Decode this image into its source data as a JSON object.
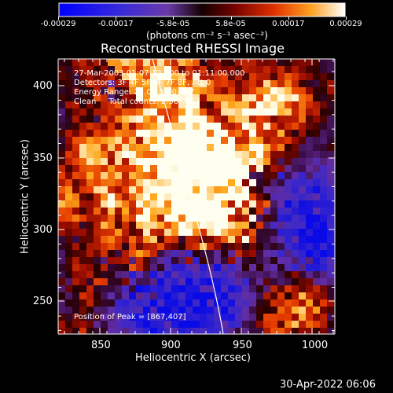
{
  "colorbar": {
    "tick_labels": [
      "-0.00029",
      "-0.00017",
      "-5.8e-05",
      "5.8e-05",
      "0.00017",
      "0.00029"
    ],
    "units_label": "(photons cm⁻² s⁻¹ asec⁻²)",
    "colors": {
      "low": "#0000ff",
      "mid_low": "#7a3bd0",
      "mid": "#000000",
      "mid_high": "#c01000",
      "high": "#ffffff"
    }
  },
  "plot": {
    "title": "Reconstructed RHESSI Image",
    "xlabel": "Heliocentric X (arcsec)",
    "ylabel": "Heliocentric Y (arcsec)",
    "x_ticks": [
      "850",
      "900",
      "950",
      "1000"
    ],
    "y_ticks": [
      "250",
      "300",
      "350",
      "400"
    ],
    "annotation_lines": [
      "27-Mar-2003 01:07:12.000 to 01:11:00.000",
      "Detectors: 3F 4F 5F 6F 7F 8F, Att 0",
      "Energy Range: 25.0 - 50.0 keV",
      "Clean     Total counts: 2.56E+03"
    ],
    "peak_label": "Position of Peak = [867,407]"
  },
  "footer": {
    "timestamp": "30-Apr-2022 06:06"
  }
}
